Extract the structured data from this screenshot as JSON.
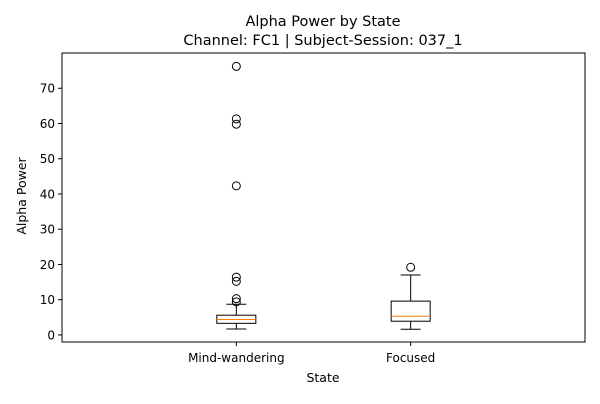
{
  "chart_data": {
    "type": "box",
    "title_line1": "Alpha Power by State",
    "title_line2": "Channel: FC1 | Subject-Session: 037_1",
    "xlabel": "State",
    "ylabel": "Alpha Power",
    "ylim": [
      -2,
      80
    ],
    "yticks": [
      0,
      10,
      20,
      30,
      40,
      50,
      60,
      70
    ],
    "ytick_labels": [
      "0",
      "10",
      "20",
      "30",
      "40",
      "50",
      "60",
      "70"
    ],
    "grid": false,
    "categories": [
      "Mind-wandering",
      "Focused"
    ],
    "boxes": [
      {
        "label": "Mind-wandering",
        "whisker_low": 1.7,
        "q1": 3.3,
        "median": 4.4,
        "q3": 5.6,
        "whisker_high": 8.7,
        "outliers": [
          9.4,
          10.3,
          15.2,
          16.4,
          42.3,
          59.8,
          61.3,
          76.2
        ]
      },
      {
        "label": "Focused",
        "whisker_low": 1.6,
        "q1": 3.9,
        "median": 5.3,
        "q3": 9.6,
        "whisker_high": 17.0,
        "outliers": [
          19.2
        ]
      }
    ],
    "colors": {
      "box": "#000000",
      "median": "#ff7f0e",
      "outlier_edge": "#000000"
    }
  }
}
